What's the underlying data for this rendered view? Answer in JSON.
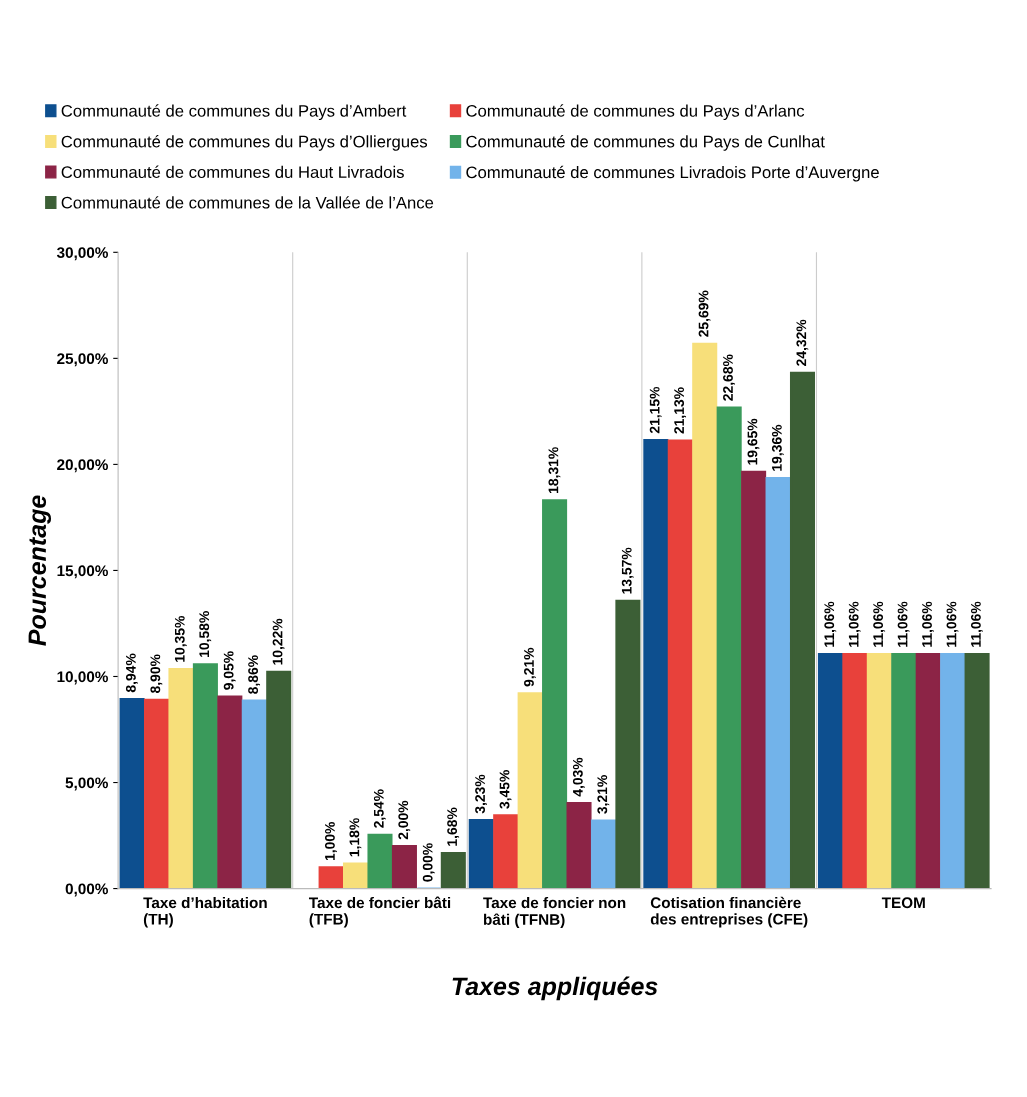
{
  "chart_data": {
    "type": "bar",
    "xlabel": "Taxes appliquées",
    "ylabel": "Pourcentage",
    "categories": [
      "Taxe d’habitation\n(TH)",
      "Taxe de foncier bâti\n(TFB)",
      "Taxe de foncier non\nbâti (TFNB)",
      "Cotisation financière\ndes entreprises (CFE)",
      "TEOM"
    ],
    "series": [
      {
        "name": "Communauté de communes du Pays d’Ambert",
        "color": "#0d4f8f",
        "values": [
          8.94,
          null,
          3.23,
          21.15,
          11.06
        ],
        "value_labels": [
          "8,94%",
          null,
          "3,23%",
          "21,15%",
          "11,06%"
        ]
      },
      {
        "name": "Communauté de communes du Pays d’Arlanc",
        "color": "#e8413b",
        "values": [
          8.9,
          1.0,
          3.45,
          21.13,
          11.06
        ],
        "value_labels": [
          "8,90%",
          "1,00%",
          "3,45%",
          "21,13%",
          "11,06%"
        ]
      },
      {
        "name": "Communauté de communes du Pays d’Olliergues",
        "color": "#f7df7a",
        "values": [
          10.35,
          1.18,
          9.21,
          25.69,
          11.06
        ],
        "value_labels": [
          "10,35%",
          "1,18%",
          "9,21%",
          "25,69%",
          "11,06%"
        ]
      },
      {
        "name": "Communauté de communes du Pays de Cunlhat",
        "color": "#3a9a5b",
        "values": [
          10.58,
          2.54,
          18.31,
          22.68,
          11.06
        ],
        "value_labels": [
          "10,58%",
          "2,54%",
          "18,31%",
          "22,68%",
          "11,06%"
        ]
      },
      {
        "name": "Communauté de communes du Haut Livradois",
        "color": "#8c2446",
        "values": [
          9.05,
          2.0,
          4.03,
          19.65,
          11.06
        ],
        "value_labels": [
          "9,05%",
          "2,00%",
          "4,03%",
          "19,65%",
          "11,06%"
        ]
      },
      {
        "name": "Communauté de communes Livradois Porte d’Auvergne",
        "color": "#72b3ea",
        "values": [
          8.86,
          0.0,
          3.21,
          19.36,
          11.06
        ],
        "value_labels": [
          "8,86%",
          "0,00%",
          "3,21%",
          "19,36%",
          "11,06%"
        ]
      },
      {
        "name": "Communauté de communes de la Vallée de l’Ance",
        "color": "#3c5f36",
        "values": [
          10.22,
          1.68,
          13.57,
          24.32,
          11.06
        ],
        "value_labels": [
          "10,22%",
          "1,68%",
          "13,57%",
          "24,32%",
          "11,06%"
        ]
      }
    ],
    "ylim": [
      0,
      30
    ],
    "yticks": [
      {
        "value": 0,
        "label": "0,00%"
      },
      {
        "value": 5,
        "label": "5,00%"
      },
      {
        "value": 10,
        "label": "10,00%"
      },
      {
        "value": 15,
        "label": "15,00%"
      },
      {
        "value": 20,
        "label": "20,00%"
      },
      {
        "value": 25,
        "label": "25,00%"
      },
      {
        "value": 30,
        "label": "30,00%"
      }
    ],
    "grid": "x",
    "legend": "top"
  }
}
